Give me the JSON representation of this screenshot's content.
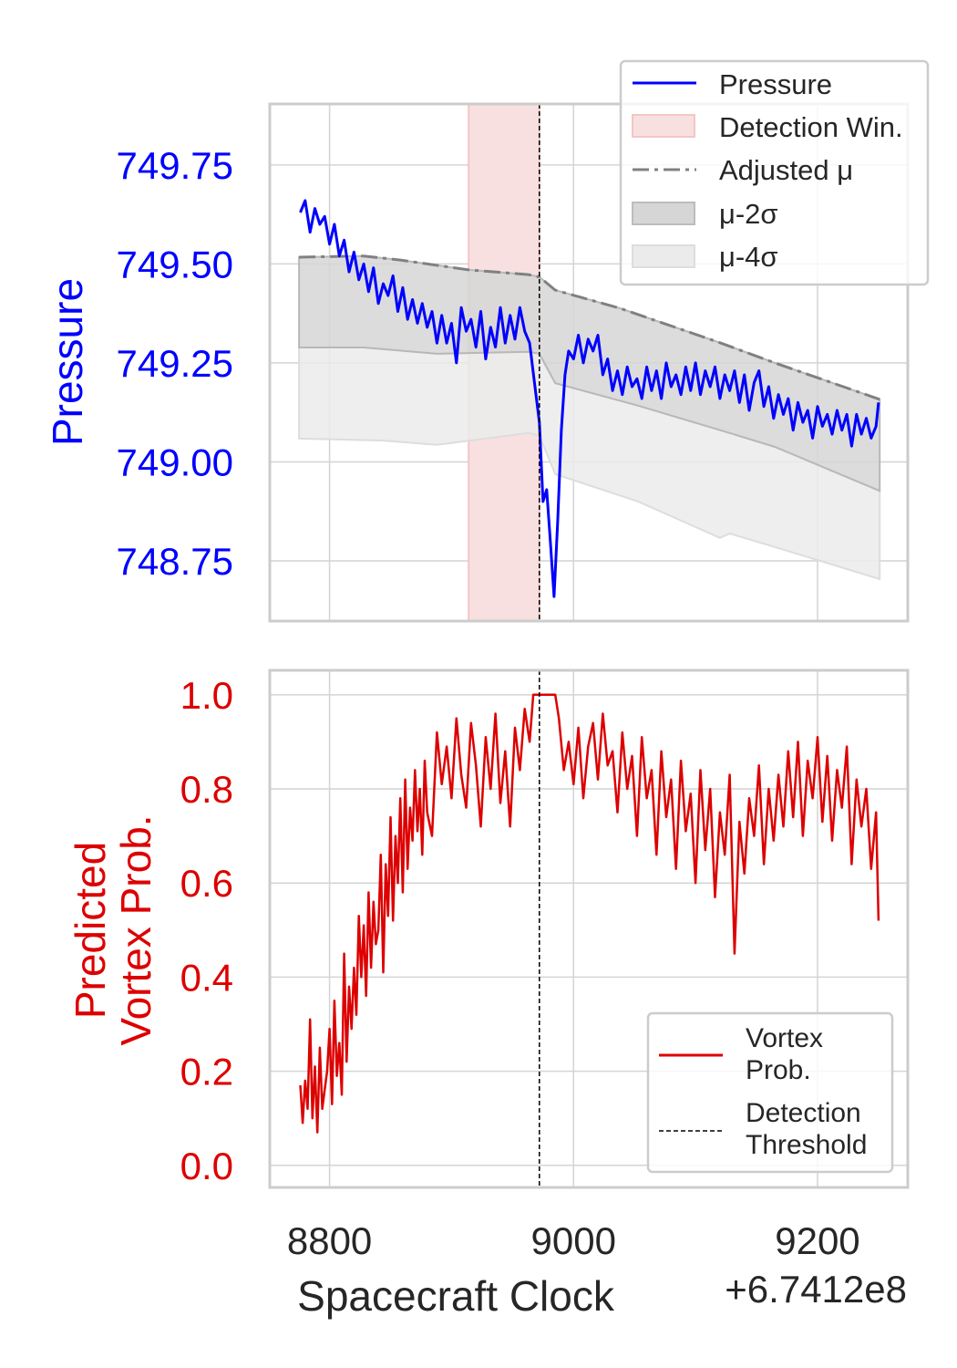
{
  "chart_data": [
    {
      "type": "line",
      "ylabel": "Pressure",
      "ylabel_color": "#0000ff",
      "xlim": [
        8751,
        9274
      ],
      "ylim": [
        748.598,
        749.904
      ],
      "yticks": [
        "748.75",
        "749.00",
        "749.25",
        "749.50",
        "749.75"
      ],
      "ytick_values": [
        748.75,
        749.0,
        749.25,
        749.5,
        749.75
      ],
      "grid": true,
      "legend_placement": "top-right",
      "legend": [
        "Pressure",
        "Detection Win.",
        "Adjusted μ",
        "μ-2σ",
        "μ-4σ"
      ],
      "detection_window": [
        8914,
        8972
      ],
      "detection_threshold_x": 8972,
      "colors": {
        "pressure": "#0000ff",
        "window": "#f4c6c6",
        "mu": "#808080",
        "band2": "#d6d6d6",
        "band4": "#ebebeb"
      },
      "adjusted_mu": {
        "x": [
          8775,
          8828,
          8858,
          8914,
          8963,
          8972,
          8985,
          9038,
          9120,
          9165,
          9251
        ],
        "y": [
          749.517,
          749.52,
          749.51,
          749.485,
          749.473,
          749.467,
          749.434,
          749.388,
          749.301,
          749.25,
          749.158
        ]
      },
      "mu_minus_2sigma": {
        "x": [
          8775,
          8828,
          8888,
          8963,
          8972,
          8985,
          9053,
          9128,
          9165,
          9251
        ],
        "y": [
          749.289,
          749.289,
          749.273,
          749.278,
          749.273,
          749.199,
          749.142,
          749.073,
          749.038,
          748.927
        ]
      },
      "mu_minus_4sigma": {
        "x": [
          8775,
          8843,
          8888,
          8963,
          8972,
          8985,
          9053,
          9120,
          9128,
          9165,
          9251
        ],
        "y": [
          749.059,
          749.054,
          749.043,
          749.073,
          749.066,
          748.969,
          748.9,
          748.808,
          748.819,
          748.785,
          748.704
        ]
      },
      "series": [
        {
          "name": "Pressure",
          "x": [
            8776,
            8780,
            8784,
            8788,
            8792,
            8796,
            8800,
            8804,
            8808,
            8812,
            8816,
            8820,
            8824,
            8828,
            8832,
            8836,
            8840,
            8844,
            8848,
            8852,
            8856,
            8860,
            8864,
            8868,
            8872,
            8876,
            8880,
            8884,
            8888,
            8892,
            8896,
            8900,
            8904,
            8908,
            8912,
            8916,
            8920,
            8924,
            8928,
            8932,
            8936,
            8940,
            8944,
            8948,
            8952,
            8956,
            8960,
            8964,
            8968,
            8972,
            8975,
            8978,
            8981,
            8984,
            8987,
            8990,
            8993,
            8996,
            9000,
            9004,
            9008,
            9012,
            9016,
            9020,
            9024,
            9028,
            9032,
            9036,
            9040,
            9044,
            9048,
            9052,
            9056,
            9060,
            9064,
            9068,
            9072,
            9076,
            9080,
            9084,
            9088,
            9092,
            9096,
            9100,
            9104,
            9108,
            9112,
            9116,
            9120,
            9124,
            9128,
            9132,
            9136,
            9140,
            9144,
            9148,
            9152,
            9156,
            9160,
            9164,
            9168,
            9172,
            9176,
            9180,
            9184,
            9188,
            9192,
            9196,
            9200,
            9204,
            9208,
            9212,
            9216,
            9220,
            9224,
            9228,
            9232,
            9236,
            9240,
            9244,
            9248,
            9250
          ],
          "y": [
            749.63,
            749.66,
            749.58,
            749.64,
            749.6,
            749.62,
            749.55,
            749.6,
            749.52,
            749.56,
            749.48,
            749.53,
            749.46,
            749.5,
            749.43,
            749.49,
            749.4,
            749.45,
            749.42,
            749.47,
            749.38,
            749.44,
            749.36,
            749.41,
            749.35,
            749.4,
            749.34,
            749.38,
            749.3,
            749.37,
            749.3,
            749.35,
            749.25,
            749.39,
            749.33,
            749.36,
            749.29,
            749.38,
            749.26,
            749.34,
            749.29,
            749.39,
            749.3,
            749.37,
            749.31,
            749.39,
            749.33,
            749.3,
            749.2,
            749.1,
            748.9,
            748.93,
            748.8,
            748.66,
            748.85,
            749.08,
            749.22,
            749.28,
            749.26,
            749.32,
            749.25,
            749.31,
            749.28,
            749.32,
            749.22,
            749.26,
            749.18,
            749.23,
            749.17,
            749.24,
            749.19,
            749.21,
            749.16,
            749.24,
            749.18,
            749.23,
            749.16,
            749.25,
            749.19,
            749.22,
            749.17,
            749.24,
            749.18,
            749.25,
            749.17,
            749.23,
            749.19,
            749.24,
            749.16,
            749.22,
            749.18,
            749.23,
            749.15,
            749.22,
            749.13,
            749.2,
            749.23,
            749.14,
            749.19,
            749.11,
            749.17,
            749.12,
            749.16,
            749.08,
            749.15,
            749.1,
            749.13,
            749.06,
            749.14,
            749.09,
            749.12,
            749.07,
            749.13,
            749.08,
            749.12,
            749.04,
            749.12,
            749.07,
            749.11,
            749.06,
            749.09,
            749.15
          ]
        }
      ]
    },
    {
      "type": "line",
      "ylabel": "Predicted\nVortex Prob.",
      "ylabel_lines": [
        "Predicted",
        "Vortex Prob."
      ],
      "ylabel_color": "#dd0000",
      "xlabel": "Spacecraft Clock",
      "x_offset_label": "+6.7412e8",
      "xlim": [
        8751,
        9274
      ],
      "ylim": [
        -0.047,
        1.052
      ],
      "xticks": [
        "8800",
        "9000",
        "9200"
      ],
      "xtick_values": [
        8800,
        9000,
        9200
      ],
      "yticks": [
        "0.0",
        "0.2",
        "0.4",
        "0.6",
        "0.8",
        "1.0"
      ],
      "ytick_values": [
        0,
        0.2,
        0.4,
        0.6,
        0.8,
        1.0
      ],
      "grid": true,
      "legend_placement": "lower-right",
      "legend": [
        [
          "Vortex",
          "Prob."
        ],
        [
          "Detection",
          "Threshold"
        ]
      ],
      "detection_threshold_x": 8972,
      "colors": {
        "prob": "#dd0000",
        "threshold": "#000000"
      },
      "series": [
        {
          "name": "Vortex Prob.",
          "x": [
            8776,
            8778,
            8780,
            8782,
            8784,
            8786,
            8788,
            8790,
            8792,
            8794,
            8796,
            8798,
            8800,
            8802,
            8804,
            8806,
            8808,
            8810,
            8812,
            8814,
            8816,
            8818,
            8820,
            8822,
            8824,
            8826,
            8828,
            8830,
            8832,
            8834,
            8836,
            8838,
            8840,
            8842,
            8844,
            8846,
            8848,
            8850,
            8852,
            8854,
            8856,
            8858,
            8860,
            8862,
            8864,
            8866,
            8868,
            8870,
            8872,
            8874,
            8876,
            8878,
            8880,
            8884,
            8888,
            8892,
            8896,
            8900,
            8904,
            8908,
            8912,
            8916,
            8920,
            8924,
            8928,
            8932,
            8936,
            8940,
            8944,
            8948,
            8952,
            8956,
            8960,
            8964,
            8967,
            8970,
            8975,
            8980,
            8985,
            8988,
            8992,
            8996,
            9000,
            9004,
            9008,
            9012,
            9016,
            9020,
            9024,
            9028,
            9032,
            9036,
            9040,
            9044,
            9048,
            9052,
            9056,
            9060,
            9064,
            9068,
            9072,
            9076,
            9080,
            9084,
            9088,
            9092,
            9096,
            9100,
            9104,
            9108,
            9112,
            9116,
            9120,
            9124,
            9128,
            9132,
            9136,
            9140,
            9144,
            9148,
            9152,
            9156,
            9160,
            9164,
            9168,
            9172,
            9176,
            9180,
            9184,
            9188,
            9192,
            9196,
            9200,
            9204,
            9208,
            9212,
            9216,
            9220,
            9224,
            9228,
            9232,
            9236,
            9240,
            9244,
            9248,
            9250
          ],
          "y": [
            0.17,
            0.09,
            0.18,
            0.12,
            0.31,
            0.1,
            0.21,
            0.07,
            0.25,
            0.12,
            0.16,
            0.2,
            0.29,
            0.13,
            0.35,
            0.19,
            0.26,
            0.15,
            0.45,
            0.22,
            0.38,
            0.29,
            0.42,
            0.32,
            0.53,
            0.4,
            0.51,
            0.36,
            0.58,
            0.42,
            0.56,
            0.47,
            0.5,
            0.66,
            0.41,
            0.64,
            0.53,
            0.74,
            0.52,
            0.7,
            0.6,
            0.78,
            0.58,
            0.82,
            0.63,
            0.76,
            0.69,
            0.84,
            0.71,
            0.8,
            0.66,
            0.86,
            0.75,
            0.7,
            0.92,
            0.81,
            0.89,
            0.78,
            0.95,
            0.83,
            0.76,
            0.94,
            0.85,
            0.72,
            0.91,
            0.8,
            0.96,
            0.77,
            0.88,
            0.72,
            0.93,
            0.84,
            0.97,
            0.9,
            1.0,
            1.0,
            1.0,
            1.0,
            1.0,
            0.95,
            0.84,
            0.9,
            0.81,
            0.93,
            0.78,
            0.89,
            0.94,
            0.82,
            0.96,
            0.85,
            0.88,
            0.75,
            0.92,
            0.8,
            0.87,
            0.7,
            0.91,
            0.78,
            0.84,
            0.66,
            0.88,
            0.74,
            0.82,
            0.63,
            0.86,
            0.71,
            0.79,
            0.6,
            0.84,
            0.67,
            0.8,
            0.57,
            0.75,
            0.66,
            0.83,
            0.45,
            0.73,
            0.62,
            0.78,
            0.7,
            0.85,
            0.64,
            0.8,
            0.69,
            0.83,
            0.72,
            0.88,
            0.74,
            0.9,
            0.7,
            0.86,
            0.78,
            0.91,
            0.73,
            0.87,
            0.69,
            0.84,
            0.76,
            0.89,
            0.64,
            0.82,
            0.72,
            0.8,
            0.63,
            0.75,
            0.52
          ]
        }
      ]
    }
  ]
}
